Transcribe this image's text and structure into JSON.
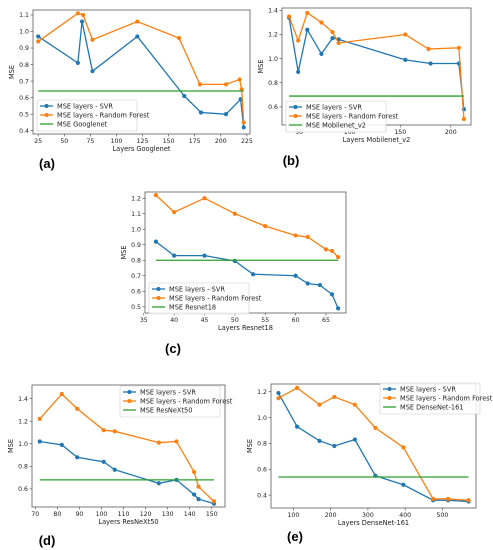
{
  "colors": {
    "svr": "#1f77b4",
    "rf": "#ff7f0e",
    "baseline": "#2ca02c"
  },
  "chart_data": [
    {
      "id": "a",
      "panel_label": "(a)",
      "type": "line",
      "xlabel": "Layers Googlenet",
      "ylabel": "MSE",
      "xlim": [
        20,
        228
      ],
      "ylim": [
        0.38,
        1.13
      ],
      "xticks": [
        "25",
        "50",
        "75",
        "100",
        "125",
        "150",
        "175",
        "200",
        "225"
      ],
      "yticks": [
        "0.4",
        "0.5",
        "0.6",
        "0.7",
        "0.8",
        "0.9",
        "1.0",
        "1.1"
      ],
      "legend_position": "lower-left",
      "series": [
        {
          "name": "MSE layers - SVR",
          "kind": "svr",
          "x": [
            25,
            63,
            67,
            77,
            120,
            165,
            181,
            205,
            219,
            222
          ],
          "y": [
            0.97,
            0.81,
            1.06,
            0.76,
            0.97,
            0.61,
            0.51,
            0.5,
            0.59,
            0.42
          ]
        },
        {
          "name": "MSE layers - Random Forest",
          "kind": "rf",
          "x": [
            25,
            63,
            68,
            77,
            120,
            160,
            180,
            205,
            218,
            220,
            222
          ],
          "y": [
            0.94,
            1.11,
            1.1,
            0.95,
            1.06,
            0.96,
            0.68,
            0.68,
            0.71,
            0.65,
            0.45
          ]
        },
        {
          "name": "MSE Googlenet",
          "kind": "baseline",
          "x": [
            25,
            222
          ],
          "y": [
            0.64,
            0.64
          ]
        }
      ]
    },
    {
      "id": "b",
      "panel_label": "(b)",
      "type": "line",
      "xlabel": "Layers Mobilenet_v2",
      "ylabel": "MSE",
      "xlim": [
        33,
        220
      ],
      "ylim": [
        0.45,
        1.42
      ],
      "xticks": [
        "50",
        "100",
        "150",
        "200"
      ],
      "yticks": [
        "0.6",
        "0.8",
        "1.0",
        "1.2",
        "1.4"
      ],
      "legend_position": "lower-left",
      "series": [
        {
          "name": "MSE layers - SVR",
          "kind": "svr",
          "x": [
            40,
            49,
            58,
            72,
            83,
            89,
            155,
            180,
            208,
            213
          ],
          "y": [
            1.34,
            0.89,
            1.24,
            1.04,
            1.17,
            1.16,
            0.99,
            0.96,
            0.96,
            0.58
          ]
        },
        {
          "name": "MSE layers - Random Forest",
          "kind": "rf",
          "x": [
            40,
            49,
            58,
            72,
            83,
            89,
            155,
            178,
            208,
            213
          ],
          "y": [
            1.35,
            1.15,
            1.38,
            1.3,
            1.22,
            1.13,
            1.2,
            1.08,
            1.09,
            0.5
          ]
        },
        {
          "name": "MSE Mobilenet_v2",
          "kind": "baseline",
          "x": [
            40,
            213
          ],
          "y": [
            0.69,
            0.69
          ]
        }
      ]
    },
    {
      "id": "c",
      "panel_label": "(c)",
      "type": "line",
      "xlabel": "Layers Resnet18",
      "ylabel": "MSE",
      "xlim": [
        35.2,
        68.3
      ],
      "ylim": [
        0.46,
        1.24
      ],
      "xticks": [
        "35",
        "40",
        "45",
        "50",
        "55",
        "60",
        "65"
      ],
      "yticks": [
        "0.5",
        "0.6",
        "0.7",
        "0.8",
        "0.9",
        "1.0",
        "1.1",
        "1.2"
      ],
      "legend_position": "lower-left",
      "series": [
        {
          "name": "MSE layers - SVR",
          "kind": "svr",
          "x": [
            37,
            40,
            45,
            50,
            53,
            60,
            62,
            64,
            66,
            67
          ],
          "y": [
            0.92,
            0.83,
            0.83,
            0.795,
            0.71,
            0.7,
            0.65,
            0.64,
            0.58,
            0.49
          ]
        },
        {
          "name": "MSE layers - Random Forest",
          "kind": "rf",
          "x": [
            37,
            40,
            45,
            50,
            55,
            60,
            62,
            65,
            66,
            67
          ],
          "y": [
            1.22,
            1.11,
            1.2,
            1.1,
            1.02,
            0.96,
            0.95,
            0.87,
            0.86,
            0.82
          ]
        },
        {
          "name": "MSE Resnet18",
          "kind": "baseline",
          "x": [
            37,
            67
          ],
          "y": [
            0.8,
            0.8
          ]
        }
      ]
    },
    {
      "id": "d",
      "panel_label": "(d)",
      "type": "line",
      "xlabel": "Layers ResNeXt50",
      "ylabel": "MSE",
      "xlim": [
        68.5,
        156
      ],
      "ylim": [
        0.44,
        1.52
      ],
      "xticks": [
        "70",
        "80",
        "90",
        "100",
        "110",
        "120",
        "130",
        "140",
        "150"
      ],
      "yticks": [
        "0.6",
        "0.8",
        "1.0",
        "1.2",
        "1.4"
      ],
      "legend_position": "upper-right",
      "series": [
        {
          "name": "MSE layers - SVR",
          "kind": "svr",
          "x": [
            72,
            82,
            89,
            101,
            106,
            126,
            134,
            142,
            144,
            151
          ],
          "y": [
            1.02,
            0.99,
            0.88,
            0.84,
            0.77,
            0.65,
            0.68,
            0.55,
            0.51,
            0.47
          ]
        },
        {
          "name": "MSE layers - Random Forest",
          "kind": "rf",
          "x": [
            72,
            82,
            89,
            101,
            106,
            126,
            134,
            142,
            144,
            151
          ],
          "y": [
            1.22,
            1.44,
            1.31,
            1.12,
            1.11,
            1.01,
            1.02,
            0.75,
            0.62,
            0.49
          ]
        },
        {
          "name": "MSE ResNeXt50",
          "kind": "baseline",
          "x": [
            72,
            151
          ],
          "y": [
            0.68,
            0.68
          ]
        }
      ]
    },
    {
      "id": "e",
      "panel_label": "(e)",
      "type": "line",
      "xlabel": "Layers DenseNet-161",
      "ylabel": "MSE",
      "xlim": [
        40,
        590
      ],
      "ylim": [
        0.3,
        1.26
      ],
      "xticks": [
        "100",
        "200",
        "300",
        "400",
        "500"
      ],
      "yticks": [
        "0.4",
        "0.6",
        "0.8",
        "1.0",
        "1.2"
      ],
      "legend_position": "upper-right",
      "series": [
        {
          "name": "MSE layers - SVR",
          "kind": "svr",
          "x": [
            60,
            110,
            170,
            210,
            265,
            320,
            395,
            475,
            515,
            570
          ],
          "y": [
            1.19,
            0.93,
            0.82,
            0.78,
            0.83,
            0.55,
            0.48,
            0.36,
            0.36,
            0.35
          ]
        },
        {
          "name": "MSE layers - Random Forest",
          "kind": "rf",
          "x": [
            60,
            110,
            170,
            210,
            265,
            320,
            395,
            475,
            515,
            570
          ],
          "y": [
            1.15,
            1.23,
            1.1,
            1.16,
            1.1,
            0.92,
            0.77,
            0.37,
            0.37,
            0.36
          ]
        },
        {
          "name": "MSE DenseNet-161",
          "kind": "baseline",
          "x": [
            60,
            570
          ],
          "y": [
            0.54,
            0.54
          ]
        }
      ]
    }
  ]
}
